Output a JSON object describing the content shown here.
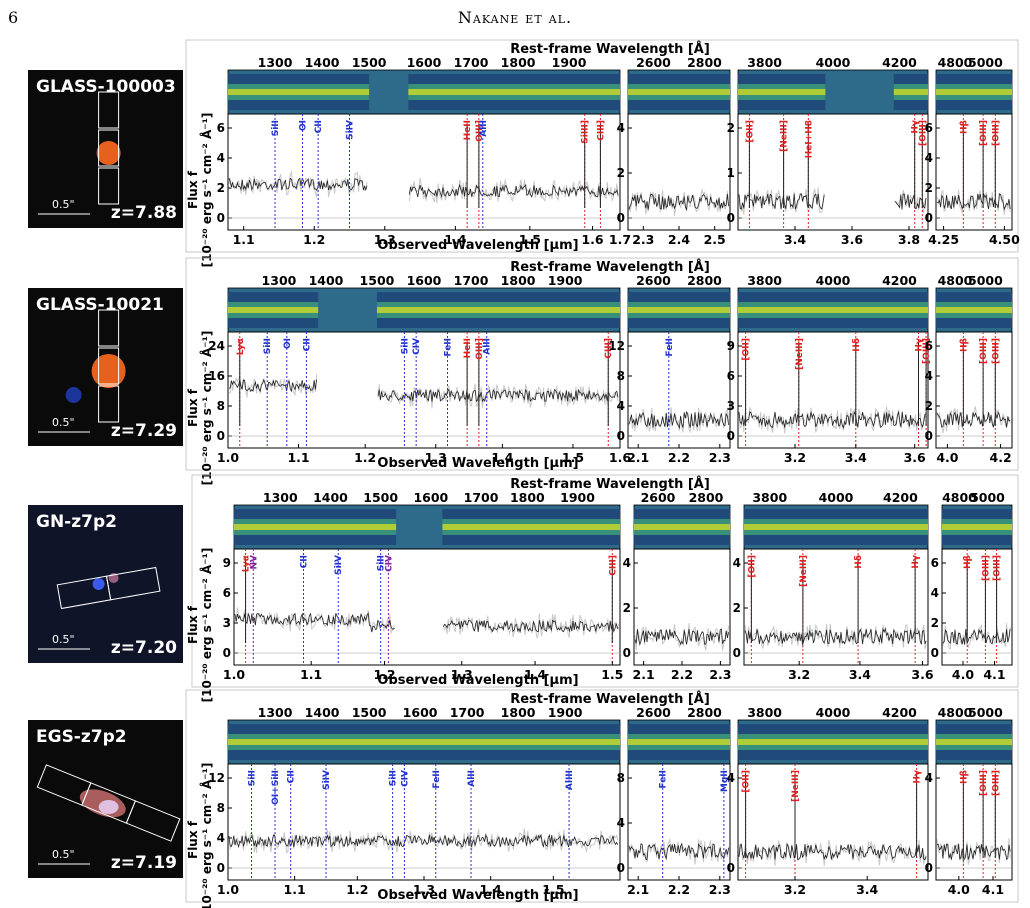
{
  "page": {
    "number": "6",
    "running_head": "Nakane et al."
  },
  "colors": {
    "spectrum": "#222222",
    "error": "#c8c8c8",
    "red_line": "#e02020",
    "blue_line": "#2030d0",
    "purple_line": "#8020a0",
    "twod_bg": "#2e6a8a",
    "twod_trace": "#d8e020",
    "twod_mid": "#3fa07a",
    "galaxy_core": "#ff6a20"
  },
  "rest_label": "Rest-frame Wavelength [Å]",
  "obs_label": "Observed Wavelength [μm]",
  "ylabel_1": "Flux f",
  "ylabel_2": "[10",
  "rows": [
    {
      "id": "GLASS-100003",
      "z": "z=7.88",
      "scale": "0.5\"",
      "thumb": "glass100003",
      "panels": [
        {
          "rest": [
            "1300",
            "1400",
            "1500",
            "1600",
            "1700",
            "1800",
            "1900"
          ],
          "rest_pos": [
            0.12,
            0.24,
            0.36,
            0.5,
            0.62,
            0.74,
            0.87
          ],
          "obs": [
            "1.1",
            "1.2",
            "1.3",
            "1.4",
            "1.5",
            "1.6",
            "1.7"
          ],
          "obs_pos": [
            0.04,
            0.22,
            0.4,
            0.58,
            0.77,
            0.93,
            1.0
          ],
          "yt": [
            "0",
            "2",
            "4",
            "6"
          ],
          "gap": [
            0.36,
            0.46
          ],
          "lines": [
            [
              "SiII",
              0.12,
              "b"
            ],
            [
              "OI",
              0.19,
              "b"
            ],
            [
              "CII",
              0.23,
              "b"
            ],
            [
              "SiIV",
              0.31,
              "b"
            ],
            [
              "HeII",
              0.61,
              "r"
            ],
            [
              "OIII]",
              0.64,
              "r"
            ],
            [
              "AlII",
              0.65,
              "b"
            ],
            [
              "SiIII]",
              0.91,
              "r"
            ],
            [
              "CIII]",
              0.95,
              "r"
            ]
          ]
        },
        {
          "rest": [
            "2600",
            "2800"
          ],
          "rest_pos": [
            0.25,
            0.75
          ],
          "obs": [
            "2.3",
            "2.4",
            "2.5"
          ],
          "obs_pos": [
            0.15,
            0.5,
            0.85
          ],
          "yt": [
            "0",
            "2",
            "4"
          ],
          "gap": null,
          "lines": []
        },
        {
          "rest": [
            "3800",
            "4000",
            "4200"
          ],
          "rest_pos": [
            0.14,
            0.5,
            0.85
          ],
          "obs": [
            "3.4",
            "3.6",
            "3.8"
          ],
          "obs_pos": [
            0.3,
            0.6,
            0.9
          ],
          "yt": [
            "0",
            "1",
            "2"
          ],
          "gap": [
            0.46,
            0.82
          ],
          "lines": [
            [
              "[OII]",
              0.06,
              "r"
            ],
            [
              "[NeIII]",
              0.24,
              "r"
            ],
            [
              "HeI+H8",
              0.37,
              "r"
            ],
            [
              "Hγ",
              0.93,
              "r"
            ],
            [
              "[OIII]",
              0.97,
              "r"
            ]
          ]
        },
        {
          "rest": [
            "4800",
            "5000"
          ],
          "rest_pos": [
            0.25,
            0.65
          ],
          "obs": [
            "4.25",
            "4.50"
          ],
          "obs_pos": [
            0.1,
            0.9
          ],
          "yt": [
            "0",
            "2",
            "4",
            "6"
          ],
          "gap": null,
          "lines": [
            [
              "Hβ",
              0.36,
              "r"
            ],
            [
              "[OIII]",
              0.62,
              "r"
            ],
            [
              "[OIII]",
              0.78,
              "r"
            ]
          ]
        }
      ]
    },
    {
      "id": "GLASS-10021",
      "z": "z=7.29",
      "scale": "0.5\"",
      "thumb": "glass10021",
      "panels": [
        {
          "rest": [
            "1300",
            "1400",
            "1500",
            "1600",
            "1700",
            "1800",
            "1900"
          ],
          "rest_pos": [
            0.13,
            0.25,
            0.38,
            0.5,
            0.62,
            0.74,
            0.86
          ],
          "obs": [
            "1.0",
            "1.1",
            "1.2",
            "1.3",
            "1.4",
            "1.5",
            "1.6"
          ],
          "obs_pos": [
            0.0,
            0.18,
            0.35,
            0.53,
            0.7,
            0.88,
            1.0
          ],
          "yt": [
            "0",
            "8",
            "16",
            "24"
          ],
          "gap": [
            0.23,
            0.38
          ],
          "lines": [
            [
              "Lyα",
              0.03,
              "r"
            ],
            [
              "SiII",
              0.1,
              "b"
            ],
            [
              "OI",
              0.15,
              "b"
            ],
            [
              "CII",
              0.2,
              "b"
            ],
            [
              "SiII",
              0.45,
              "b"
            ],
            [
              "CIV",
              0.48,
              "b"
            ],
            [
              "FeII",
              0.56,
              "b"
            ],
            [
              "HeII",
              0.61,
              "r"
            ],
            [
              "OIII]",
              0.64,
              "r"
            ],
            [
              "AlII",
              0.66,
              "b"
            ],
            [
              "CIII]",
              0.97,
              "r"
            ]
          ]
        },
        {
          "rest": [
            "2600",
            "2800"
          ],
          "rest_pos": [
            0.25,
            0.75
          ],
          "obs": [
            "2.1",
            "2.2",
            "2.3"
          ],
          "obs_pos": [
            0.1,
            0.5,
            0.9
          ],
          "yt": [
            "0",
            "4",
            "8",
            "12"
          ],
          "gap": null,
          "lines": [
            [
              "FeII",
              0.4,
              "b"
            ]
          ]
        },
        {
          "rest": [
            "3800",
            "4000",
            "4200"
          ],
          "rest_pos": [
            0.14,
            0.5,
            0.85
          ],
          "obs": [
            "3.2",
            "3.4",
            "3.6"
          ],
          "obs_pos": [
            0.3,
            0.62,
            0.93
          ],
          "yt": [
            "0",
            "3",
            "6",
            "9"
          ],
          "gap": null,
          "lines": [
            [
              "[OII]",
              0.04,
              "r"
            ],
            [
              "[NeIII]",
              0.32,
              "r"
            ],
            [
              "Hδ",
              0.62,
              "r"
            ],
            [
              "Hγ",
              0.95,
              "r"
            ],
            [
              "[OIII]",
              0.99,
              "r"
            ]
          ]
        },
        {
          "rest": [
            "4800",
            "5000"
          ],
          "rest_pos": [
            0.25,
            0.65
          ],
          "obs": [
            "4.0",
            "4.2"
          ],
          "obs_pos": [
            0.15,
            0.85
          ],
          "yt": [
            "0",
            "2",
            "4",
            "6"
          ],
          "gap": null,
          "lines": [
            [
              "Hβ",
              0.36,
              "r"
            ],
            [
              "[OIII]",
              0.62,
              "r"
            ],
            [
              "[OIII]",
              0.78,
              "r"
            ]
          ]
        }
      ]
    },
    {
      "id": "GN-z7p2",
      "z": "z=7.20",
      "scale": "0.5\"",
      "thumb": "gnz7p2",
      "panels": [
        {
          "rest": [
            "1300",
            "1400",
            "1500",
            "1600",
            "1700",
            "1800",
            "1900"
          ],
          "rest_pos": [
            0.12,
            0.25,
            0.38,
            0.51,
            0.64,
            0.76,
            0.89
          ],
          "obs": [
            "1.0",
            "1.1",
            "1.2",
            "1.3",
            "1.4",
            "1.5"
          ],
          "obs_pos": [
            0.0,
            0.2,
            0.39,
            0.59,
            0.78,
            0.98
          ],
          "yt": [
            "0",
            "3",
            "6",
            "9"
          ],
          "gap": [
            0.42,
            0.54
          ],
          "lines": [
            [
              "Lyα",
              0.03,
              "r"
            ],
            [
              "NV",
              0.05,
              "p"
            ],
            [
              "CII",
              0.18,
              "b"
            ],
            [
              "SiIV",
              0.27,
              "b"
            ],
            [
              "SiII",
              0.38,
              "b"
            ],
            [
              "CIV",
              0.4,
              "p"
            ],
            [
              "CIII]",
              0.98,
              "r"
            ]
          ]
        },
        {
          "rest": [
            "2600",
            "2800"
          ],
          "rest_pos": [
            0.25,
            0.75
          ],
          "obs": [
            "2.1",
            "2.2",
            "2.3"
          ],
          "obs_pos": [
            0.1,
            0.5,
            0.9
          ],
          "yt": [
            "0",
            "2",
            "4"
          ],
          "gap": null,
          "lines": []
        },
        {
          "rest": [
            "3800",
            "4000",
            "4200"
          ],
          "rest_pos": [
            0.14,
            0.5,
            0.85
          ],
          "obs": [
            "3.2",
            "3.4",
            "3.6"
          ],
          "obs_pos": [
            0.3,
            0.63,
            0.97
          ],
          "yt": [
            "0",
            "2",
            "4"
          ],
          "gap": null,
          "lines": [
            [
              "[OII]",
              0.04,
              "r"
            ],
            [
              "[NeIII]",
              0.32,
              "r"
            ],
            [
              "Hδ",
              0.62,
              "r"
            ],
            [
              "Hγ",
              0.93,
              "r"
            ]
          ]
        },
        {
          "rest": [
            "4800",
            "5000"
          ],
          "rest_pos": [
            0.25,
            0.65
          ],
          "obs": [
            "4.0",
            "4.1"
          ],
          "obs_pos": [
            0.3,
            0.75
          ],
          "yt": [
            "0",
            "2",
            "4",
            "6"
          ],
          "gap": null,
          "lines": [
            [
              "Hβ",
              0.36,
              "r"
            ],
            [
              "[OIII]",
              0.62,
              "r"
            ],
            [
              "[OIII]",
              0.78,
              "r"
            ]
          ]
        }
      ]
    },
    {
      "id": "EGS-z7p2",
      "z": "z=7.19",
      "scale": "0.5\"",
      "thumb": "egsz7p2",
      "panels": [
        {
          "rest": [
            "1300",
            "1400",
            "1500",
            "1600",
            "1700",
            "1800",
            "1900"
          ],
          "rest_pos": [
            0.12,
            0.24,
            0.36,
            0.49,
            0.61,
            0.74,
            0.86
          ],
          "obs": [
            "1.0",
            "1.1",
            "1.2",
            "1.3",
            "1.4",
            "1.5"
          ],
          "obs_pos": [
            0.0,
            0.17,
            0.33,
            0.5,
            0.67,
            0.83
          ],
          "yt": [
            "0",
            "4",
            "8",
            "12"
          ],
          "gap": null,
          "lines": [
            [
              "SiII",
              0.06,
              "b"
            ],
            [
              "OI+SiII",
              0.12,
              "b"
            ],
            [
              "CII",
              0.16,
              "b"
            ],
            [
              "SiIV",
              0.25,
              "b"
            ],
            [
              "SiII",
              0.42,
              "b"
            ],
            [
              "CIV",
              0.45,
              "b"
            ],
            [
              "FeII",
              0.53,
              "b"
            ],
            [
              "AlII",
              0.62,
              "b"
            ],
            [
              "AlIII",
              0.87,
              "b"
            ]
          ]
        },
        {
          "rest": [
            "2600",
            "2800"
          ],
          "rest_pos": [
            0.25,
            0.75
          ],
          "obs": [
            "2.1",
            "2.2",
            "2.3"
          ],
          "obs_pos": [
            0.1,
            0.5,
            0.9
          ],
          "yt": [
            "0",
            "4",
            "8"
          ],
          "gap": null,
          "lines": [
            [
              "FeII",
              0.34,
              "b"
            ],
            [
              "MgII",
              0.94,
              "b"
            ]
          ]
        },
        {
          "rest": [
            "3800",
            "4000",
            "4200"
          ],
          "rest_pos": [
            0.14,
            0.5,
            0.85
          ],
          "obs": [
            "3.2",
            "3.4"
          ],
          "obs_pos": [
            0.3,
            0.68
          ],
          "yt": [
            "0",
            "4"
          ],
          "gap": null,
          "lines": [
            [
              "[OII]",
              0.04,
              "r"
            ],
            [
              "[NeIII]",
              0.3,
              "r"
            ],
            [
              "Hγ",
              0.94,
              "r"
            ]
          ]
        },
        {
          "rest": [
            "4800",
            "5000"
          ],
          "rest_pos": [
            0.25,
            0.65
          ],
          "obs": [
            "4.0",
            "4.1"
          ],
          "obs_pos": [
            0.3,
            0.75
          ],
          "yt": [
            "0",
            "4"
          ],
          "gap": null,
          "lines": [
            [
              "Hβ",
              0.36,
              "r"
            ],
            [
              "[OIII]",
              0.62,
              "r"
            ],
            [
              "[OIII]",
              0.78,
              "r"
            ]
          ]
        }
      ]
    }
  ]
}
